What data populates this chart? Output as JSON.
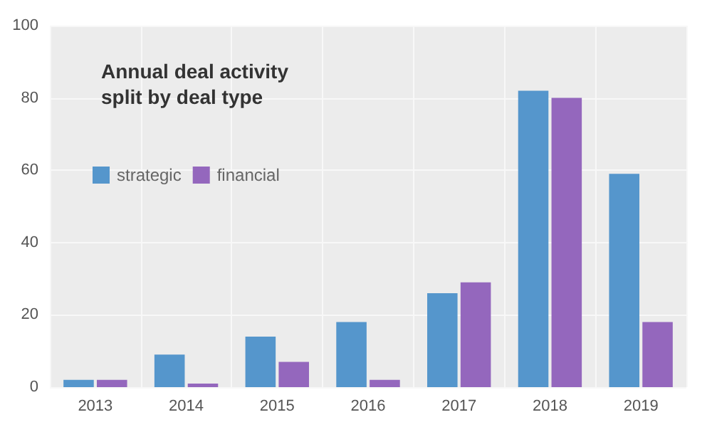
{
  "chart_data": {
    "type": "bar",
    "title": "Annual deal activity\nsplit by deal type",
    "categories": [
      "2013",
      "2014",
      "2015",
      "2016",
      "2017",
      "2018",
      "2019"
    ],
    "series": [
      {
        "name": "strategic",
        "color": "#5596cc",
        "values": [
          2,
          9,
          14,
          18,
          26,
          82,
          59
        ]
      },
      {
        "name": "financial",
        "color": "#9467bd",
        "values": [
          2,
          1,
          7,
          2,
          29,
          80,
          18
        ]
      }
    ],
    "ylim": [
      0,
      100
    ],
    "yticks": [
      0,
      20,
      40,
      60,
      80,
      100
    ],
    "grid": true,
    "legend": "top left"
  }
}
